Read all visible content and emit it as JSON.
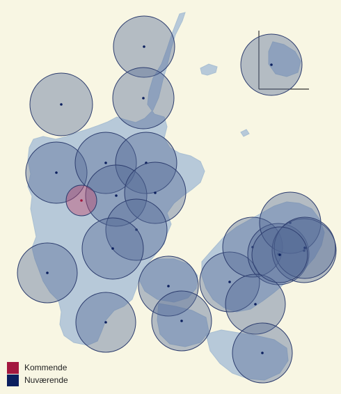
{
  "colors": {
    "upcoming": "#a3183f",
    "current": "#0b1f5e",
    "land": "#b7c9d9",
    "background": "#f8f6e3"
  },
  "legend": {
    "items": [
      {
        "label": "Kommende",
        "color": "#a3183f"
      },
      {
        "label": "Nuværende",
        "color": "#0b1f5e"
      }
    ]
  },
  "sites": [
    {
      "status": "current"
    },
    {
      "status": "current"
    },
    {
      "status": "current"
    },
    {
      "status": "current"
    },
    {
      "status": "current"
    },
    {
      "status": "current"
    },
    {
      "status": "current"
    },
    {
      "status": "current"
    },
    {
      "status": "current"
    },
    {
      "status": "upcoming"
    },
    {
      "status": "current"
    },
    {
      "status": "current"
    },
    {
      "status": "current"
    },
    {
      "status": "current"
    },
    {
      "status": "current"
    },
    {
      "status": "current"
    },
    {
      "status": "current"
    },
    {
      "status": "current"
    },
    {
      "status": "current"
    },
    {
      "status": "current"
    },
    {
      "status": "current"
    },
    {
      "status": "current"
    },
    {
      "status": "current"
    },
    {
      "status": "current"
    },
    {
      "status": "current"
    }
  ]
}
